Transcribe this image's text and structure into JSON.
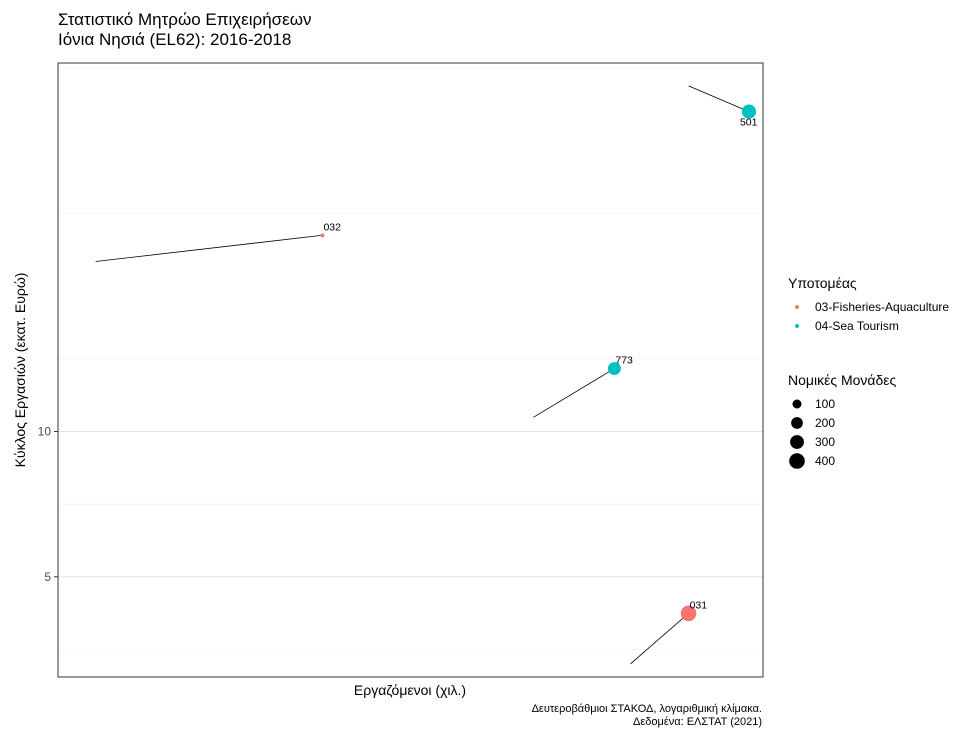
{
  "title": {
    "line1": "Στατιστικό Μητρώο Επιχειρήσεων",
    "line2": "Ιόνια Νησιά (EL62): 2016-2018"
  },
  "caption": {
    "line1": "Δευτεροβάθμιοι ΣΤΑΚΟΔ, λογαριθμική κλίμακα.",
    "line2": "Δεδομένα: ΕΛΣΤΑΤ (2021)"
  },
  "chart_data": {
    "type": "scatter",
    "xlabel": "Εργαζόμενοι (χιλ.)",
    "ylabel": "Κύκλος Εργασιών (εκατ. Ευρώ)",
    "x_scale": "log",
    "y_scale": "log",
    "x_ticks": [],
    "y_ticks": [
      5,
      10
    ],
    "grid": true,
    "xlim": [
      0.25,
      7.6
    ],
    "ylim": [
      3.1,
      58
    ],
    "legend": {
      "placement": "right",
      "color_title": "Υποτομέας",
      "color_items": [
        {
          "label": "03-Fisheries-Aquaculture",
          "color": "#F8766D"
        },
        {
          "label": "04-Sea Tourism",
          "color": "#00BFC4"
        }
      ],
      "size_title": "Νομικές Μονάδες",
      "size_items": [
        100,
        200,
        300,
        400
      ]
    },
    "points": [
      {
        "label": "032",
        "sector": "03-Fisheries-Aquaculture",
        "x_start": 0.3,
        "y_start": 22.5,
        "x": 0.9,
        "y": 25.5,
        "units": 5
      },
      {
        "label": "501",
        "sector": "04-Sea Tourism",
        "x_start": 5.3,
        "y_start": 52,
        "x": 7.1,
        "y": 46,
        "units": 320
      },
      {
        "label": "773",
        "sector": "04-Sea Tourism",
        "x_start": 2.5,
        "y_start": 10.7,
        "x": 3.7,
        "y": 13.5,
        "units": 250
      },
      {
        "label": "031",
        "sector": "03-Fisheries-Aquaculture",
        "x_start": 4.0,
        "y_start": 3.3,
        "x": 5.3,
        "y": 4.2,
        "units": 400
      }
    ]
  }
}
